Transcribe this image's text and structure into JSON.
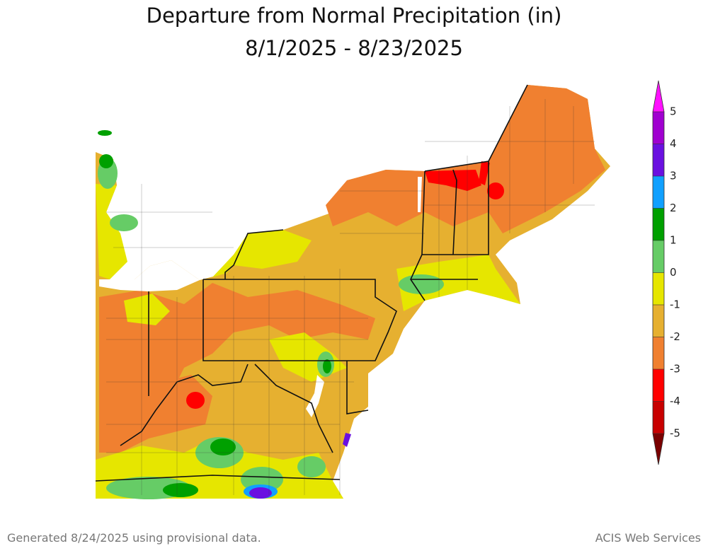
{
  "header": {
    "title": "Departure from Normal Precipitation (in)",
    "subtitle": "8/1/2025 - 8/23/2025"
  },
  "legend": {
    "ticks": [
      5,
      4,
      3,
      2,
      1,
      0,
      -1,
      -2,
      -3,
      -4,
      -5
    ],
    "band_colors": [
      "#a000d0",
      "#6a10e0",
      "#10a0ff",
      "#00a000",
      "#66cc66",
      "#e6e600",
      "#e6b030",
      "#f08030",
      "#ff0000",
      "#c80000"
    ],
    "over_color": "#ff10ff",
    "under_color": "#7a0000"
  },
  "footer": {
    "left": "Generated 8/24/2025 using provisional data.",
    "right": "ACIS Web Services"
  }
}
